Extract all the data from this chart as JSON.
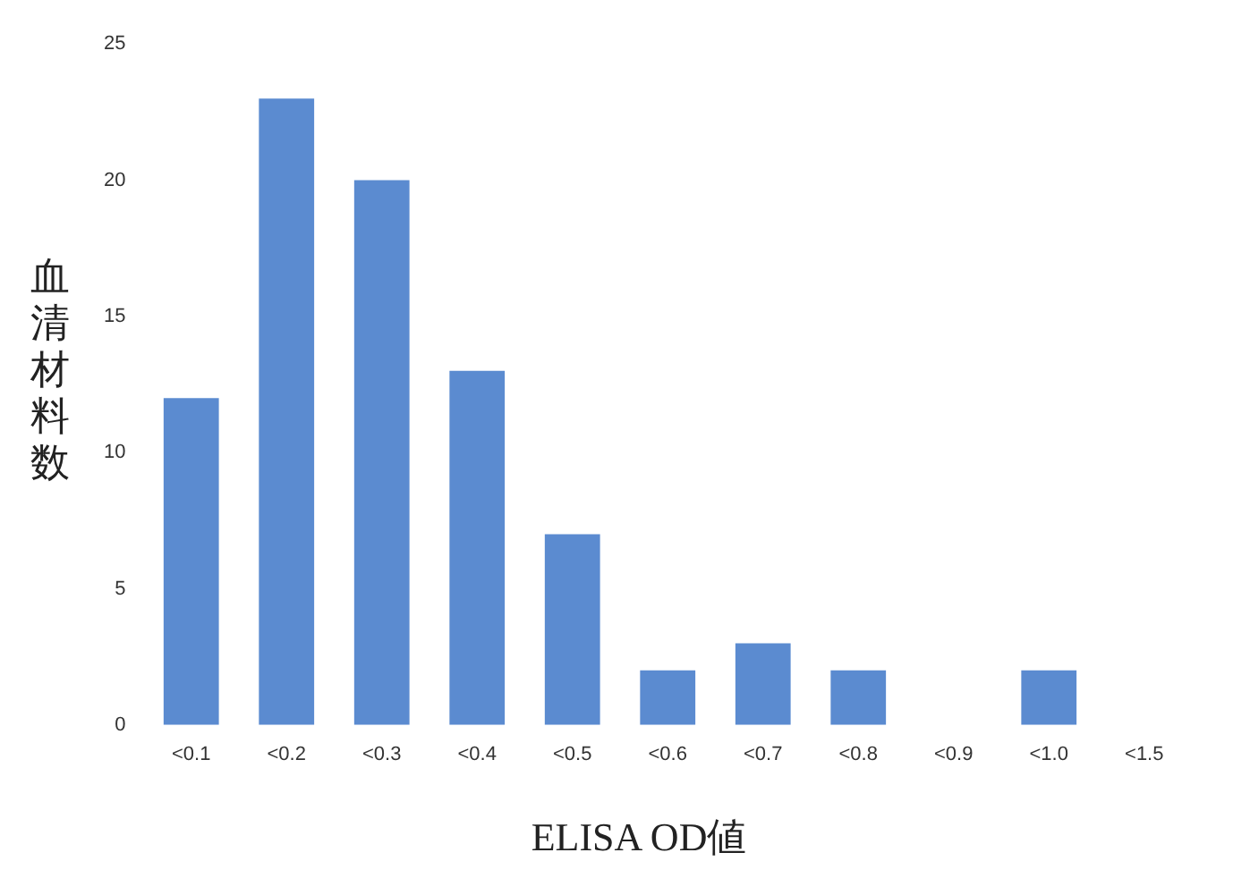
{
  "chart_data": {
    "type": "bar",
    "xlabel": "ELISA OD値",
    "ylabel": "血清材料数",
    "categories": [
      "<0.1",
      "<0.2",
      "<0.3",
      "<0.4",
      "<0.5",
      "<0.6",
      "<0.7",
      "<0.8",
      "<0.9",
      "<1.0",
      "<1.5"
    ],
    "values": [
      12,
      23,
      20,
      13,
      7,
      2,
      3,
      2,
      0,
      2,
      0
    ],
    "color": "#5b8bd0",
    "ylim": [
      0,
      25
    ],
    "yticks": [
      0,
      5,
      10,
      15,
      20,
      25
    ],
    "grid": false,
    "legend": false
  }
}
